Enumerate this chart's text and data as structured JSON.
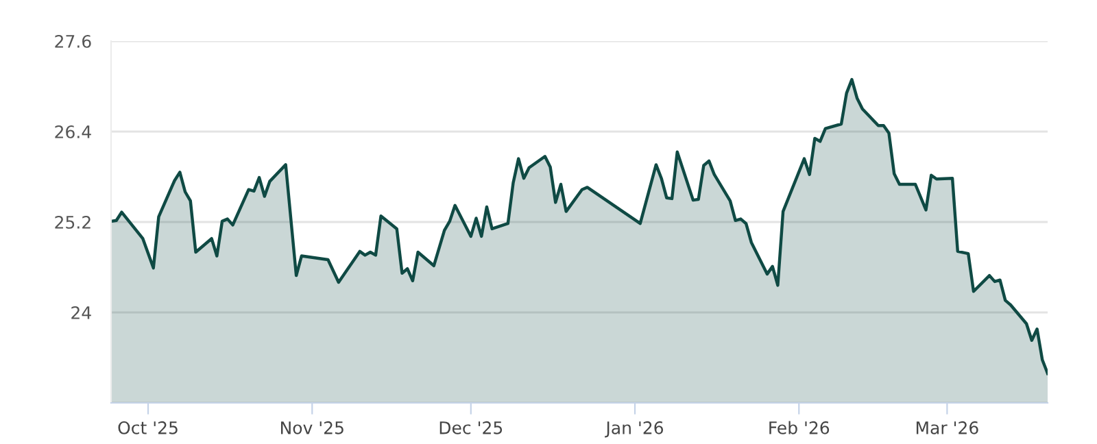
{
  "chart_data": {
    "type": "area",
    "x": [
      "2025-09-24",
      "2025-09-25",
      "2025-09-26",
      "2025-09-30",
      "2025-10-02",
      "2025-10-03",
      "2025-10-06",
      "2025-10-07",
      "2025-10-08",
      "2025-10-09",
      "2025-10-10",
      "2025-10-13",
      "2025-10-14",
      "2025-10-15",
      "2025-10-16",
      "2025-10-17",
      "2025-10-20",
      "2025-10-21",
      "2025-10-22",
      "2025-10-23",
      "2025-10-24",
      "2025-10-27",
      "2025-10-29",
      "2025-10-30",
      "2025-11-04",
      "2025-11-06",
      "2025-11-10",
      "2025-11-11",
      "2025-11-12",
      "2025-11-13",
      "2025-11-14",
      "2025-11-17",
      "2025-11-18",
      "2025-11-19",
      "2025-11-20",
      "2025-11-21",
      "2025-11-24",
      "2025-11-26",
      "2025-11-27",
      "2025-11-28",
      "2025-12-01",
      "2025-12-02",
      "2025-12-03",
      "2025-12-04",
      "2025-12-05",
      "2025-12-08",
      "2025-12-09",
      "2025-12-10",
      "2025-12-11",
      "2025-12-12",
      "2025-12-15",
      "2025-12-16",
      "2025-12-17",
      "2025-12-18",
      "2025-12-19",
      "2025-12-22",
      "2025-12-23",
      "2026-01-02",
      "2026-01-05",
      "2026-01-06",
      "2026-01-07",
      "2026-01-08",
      "2026-01-09",
      "2026-01-12",
      "2026-01-13",
      "2026-01-14",
      "2026-01-15",
      "2026-01-16",
      "2026-01-19",
      "2026-01-20",
      "2026-01-21",
      "2026-01-22",
      "2026-01-23",
      "2026-01-26",
      "2026-01-27",
      "2026-01-28",
      "2026-01-29",
      "2026-02-02",
      "2026-02-03",
      "2026-02-04",
      "2026-02-05",
      "2026-02-06",
      "2026-02-09",
      "2026-02-10",
      "2026-02-11",
      "2026-02-12",
      "2026-02-13",
      "2026-02-16",
      "2026-02-17",
      "2026-02-18",
      "2026-02-19",
      "2026-02-20",
      "2026-02-23",
      "2026-02-25",
      "2026-02-26",
      "2026-02-27",
      "2026-03-02",
      "2026-03-03",
      "2026-03-05",
      "2026-03-06",
      "2026-03-09",
      "2026-03-10",
      "2026-03-11",
      "2026-03-12",
      "2026-03-13",
      "2026-03-16",
      "2026-03-17",
      "2026-03-18",
      "2026-03-19",
      "2026-03-20"
    ],
    "series": [
      {
        "color": "#0f4a44",
        "values": [
          25.21,
          25.22,
          25.33,
          24.98,
          24.59,
          25.27,
          25.75,
          25.86,
          25.6,
          25.48,
          24.8,
          24.98,
          24.75,
          25.21,
          25.24,
          25.16,
          25.63,
          25.61,
          25.79,
          25.54,
          25.74,
          25.96,
          24.49,
          24.75,
          24.7,
          24.4,
          24.81,
          24.76,
          24.8,
          24.76,
          25.28,
          25.11,
          24.52,
          24.58,
          24.42,
          24.8,
          24.62,
          25.09,
          25.21,
          25.42,
          25.01,
          25.25,
          25.01,
          25.4,
          25.11,
          25.18,
          25.72,
          26.04,
          25.78,
          25.92,
          26.07,
          25.93,
          25.46,
          25.7,
          25.34,
          25.63,
          25.66,
          25.18,
          25.96,
          25.78,
          25.52,
          25.51,
          26.13,
          25.49,
          25.5,
          25.95,
          26.01,
          25.83,
          25.48,
          25.22,
          25.24,
          25.18,
          24.93,
          24.51,
          24.61,
          24.36,
          25.34,
          26.04,
          25.83,
          26.31,
          26.27,
          26.44,
          26.5,
          26.91,
          27.09,
          26.84,
          26.7,
          26.48,
          26.48,
          26.38,
          25.84,
          25.7,
          25.7,
          25.36,
          25.82,
          25.77,
          25.78,
          24.81,
          24.78,
          24.28,
          24.49,
          24.41,
          24.43,
          24.16,
          24.1,
          23.85,
          23.63,
          23.78,
          23.37,
          23.19
        ]
      }
    ],
    "xlim": [
      "2025-09-24",
      "2026-03-20"
    ],
    "xticks": [
      {
        "value": "2025-10-01",
        "label": "Oct '25"
      },
      {
        "value": "2025-11-01",
        "label": "Nov '25"
      },
      {
        "value": "2025-12-01",
        "label": "Dec '25"
      },
      {
        "value": "2026-01-01",
        "label": "Jan '26"
      },
      {
        "value": "2026-02-01",
        "label": "Feb '26"
      },
      {
        "value": "2026-03-01",
        "label": "Mar '26"
      }
    ],
    "ylim": [
      22.8,
      27.6
    ],
    "yticks": [
      {
        "value": 22.8,
        "label": null
      },
      24,
      25.2,
      26.4,
      27.6
    ],
    "grid": "y",
    "legend": false
  }
}
